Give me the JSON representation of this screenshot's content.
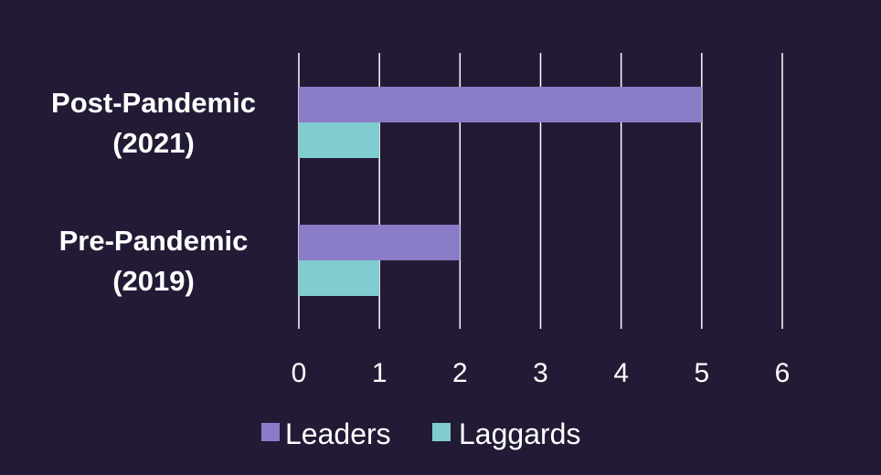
{
  "chart_data": {
    "type": "bar",
    "orientation": "horizontal",
    "categories": [
      "Post-Pandemic\n(2021)",
      "Pre-Pandemic\n(2019)"
    ],
    "series": [
      {
        "name": "Leaders",
        "color": "#8b7cc8",
        "values": [
          5,
          2
        ]
      },
      {
        "name": "Laggards",
        "color": "#7fcdd0",
        "values": [
          1,
          1
        ]
      }
    ],
    "x_ticks": [
      "0",
      "1",
      "2",
      "3",
      "4",
      "5",
      "6"
    ],
    "xlim": [
      0,
      6
    ],
    "grid": "vertical",
    "legend": "bottom-center",
    "colors": {
      "background": "#231b36",
      "grid": "#ffffff",
      "text": "#ffffff"
    }
  }
}
